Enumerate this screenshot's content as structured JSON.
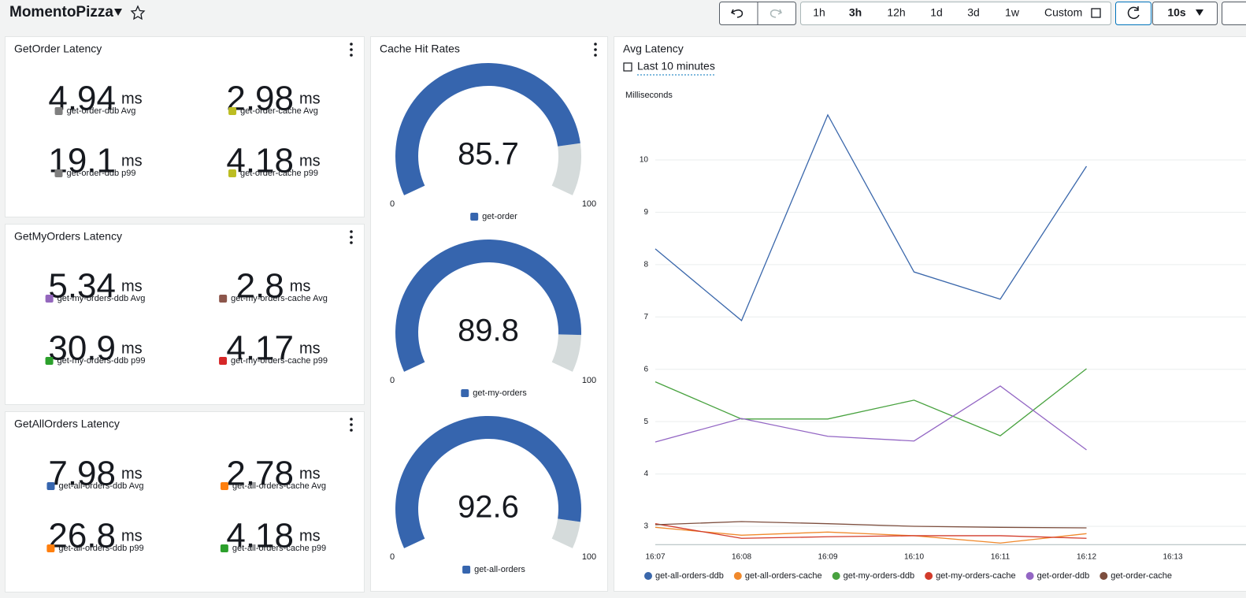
{
  "header": {
    "title": "MomentoPizza",
    "time_ranges": [
      "1h",
      "3h",
      "12h",
      "1d",
      "3d",
      "1w"
    ],
    "custom": "Custom",
    "refresh_interval": "10s"
  },
  "latency_panels": [
    {
      "title": "GetOrder Latency",
      "metrics": [
        {
          "value": 4.94,
          "unit": "ms",
          "label": "get-order-ddb Avg",
          "color": "#7f7f7f"
        },
        {
          "value": 2.98,
          "unit": "ms",
          "label": "get-order-cache Avg",
          "color": "#bcbd22"
        },
        {
          "value": 19.1,
          "unit": "ms",
          "label": "get-order-ddb p99",
          "color": "#7f7f7f"
        },
        {
          "value": 4.18,
          "unit": "ms",
          "label": "get-order-cache p99",
          "color": "#bcbd22"
        }
      ]
    },
    {
      "title": "GetMyOrders Latency",
      "metrics": [
        {
          "value": 5.34,
          "unit": "ms",
          "label": "get-my-orders-ddb Avg",
          "color": "#9467bd"
        },
        {
          "value": 2.8,
          "unit": "ms",
          "label": "get-my-orders-cache Avg",
          "color": "#8c564b"
        },
        {
          "value": 30.9,
          "unit": "ms",
          "label": "get-my-orders-ddb p99",
          "color": "#2ca02c"
        },
        {
          "value": 4.17,
          "unit": "ms",
          "label": "get-my-orders-cache p99",
          "color": "#d62728"
        }
      ]
    },
    {
      "title": "GetAllOrders Latency",
      "metrics": [
        {
          "value": 7.98,
          "unit": "ms",
          "label": "get-all-orders-ddb Avg",
          "color": "#3665ae"
        },
        {
          "value": 2.78,
          "unit": "ms",
          "label": "get-all-orders-cache Avg",
          "color": "#ff7f0e"
        },
        {
          "value": 26.8,
          "unit": "ms",
          "label": "get-all-orders-ddb p99",
          "color": "#ff7f0e"
        },
        {
          "value": 4.18,
          "unit": "ms",
          "label": "get-all-orders-cache p99",
          "color": "#2ca02c"
        }
      ]
    }
  ],
  "cache_hit_rates": {
    "title": "Cache Hit Rates",
    "min": 0,
    "max": 100,
    "color": "#3665ae",
    "gauges": [
      {
        "value": 85.7,
        "label": "get-order"
      },
      {
        "value": 89.8,
        "label": "get-my-orders"
      },
      {
        "value": 92.6,
        "label": "get-all-orders"
      }
    ]
  },
  "avg_latency": {
    "type": "line",
    "title": "Avg Latency",
    "time_range": "Last 10 minutes",
    "y_label": "Milliseconds",
    "categories": [
      "16:07",
      "16:08",
      "16:09",
      "16:10",
      "16:11",
      "16:12",
      "16:13"
    ],
    "ylim": [
      2.65,
      11
    ],
    "yticks": [
      3,
      4,
      5,
      6,
      7,
      8,
      9,
      10
    ],
    "grid": true,
    "series": [
      {
        "name": "get-all-orders-ddb",
        "color": "#3a67ab",
        "values": [
          8.3,
          6.93,
          10.86,
          7.86,
          7.34,
          9.88,
          null
        ]
      },
      {
        "name": "get-all-orders-cache",
        "color": "#f0892c",
        "values": [
          2.98,
          2.83,
          2.89,
          2.82,
          2.68,
          2.86,
          null
        ]
      },
      {
        "name": "get-my-orders-ddb",
        "color": "#48a23f",
        "values": [
          5.76,
          5.05,
          5.05,
          5.41,
          4.73,
          6.01,
          null
        ]
      },
      {
        "name": "get-my-orders-cache",
        "color": "#d23b2b",
        "values": [
          3.05,
          2.77,
          2.8,
          2.82,
          2.82,
          2.77,
          null
        ]
      },
      {
        "name": "get-order-ddb",
        "color": "#9366c4",
        "values": [
          4.61,
          5.06,
          4.72,
          4.63,
          5.68,
          4.46,
          null
        ]
      },
      {
        "name": "get-order-cache",
        "color": "#7d4e3e",
        "values": [
          3.03,
          3.09,
          3.05,
          3.0,
          2.98,
          2.97,
          null
        ]
      }
    ]
  }
}
